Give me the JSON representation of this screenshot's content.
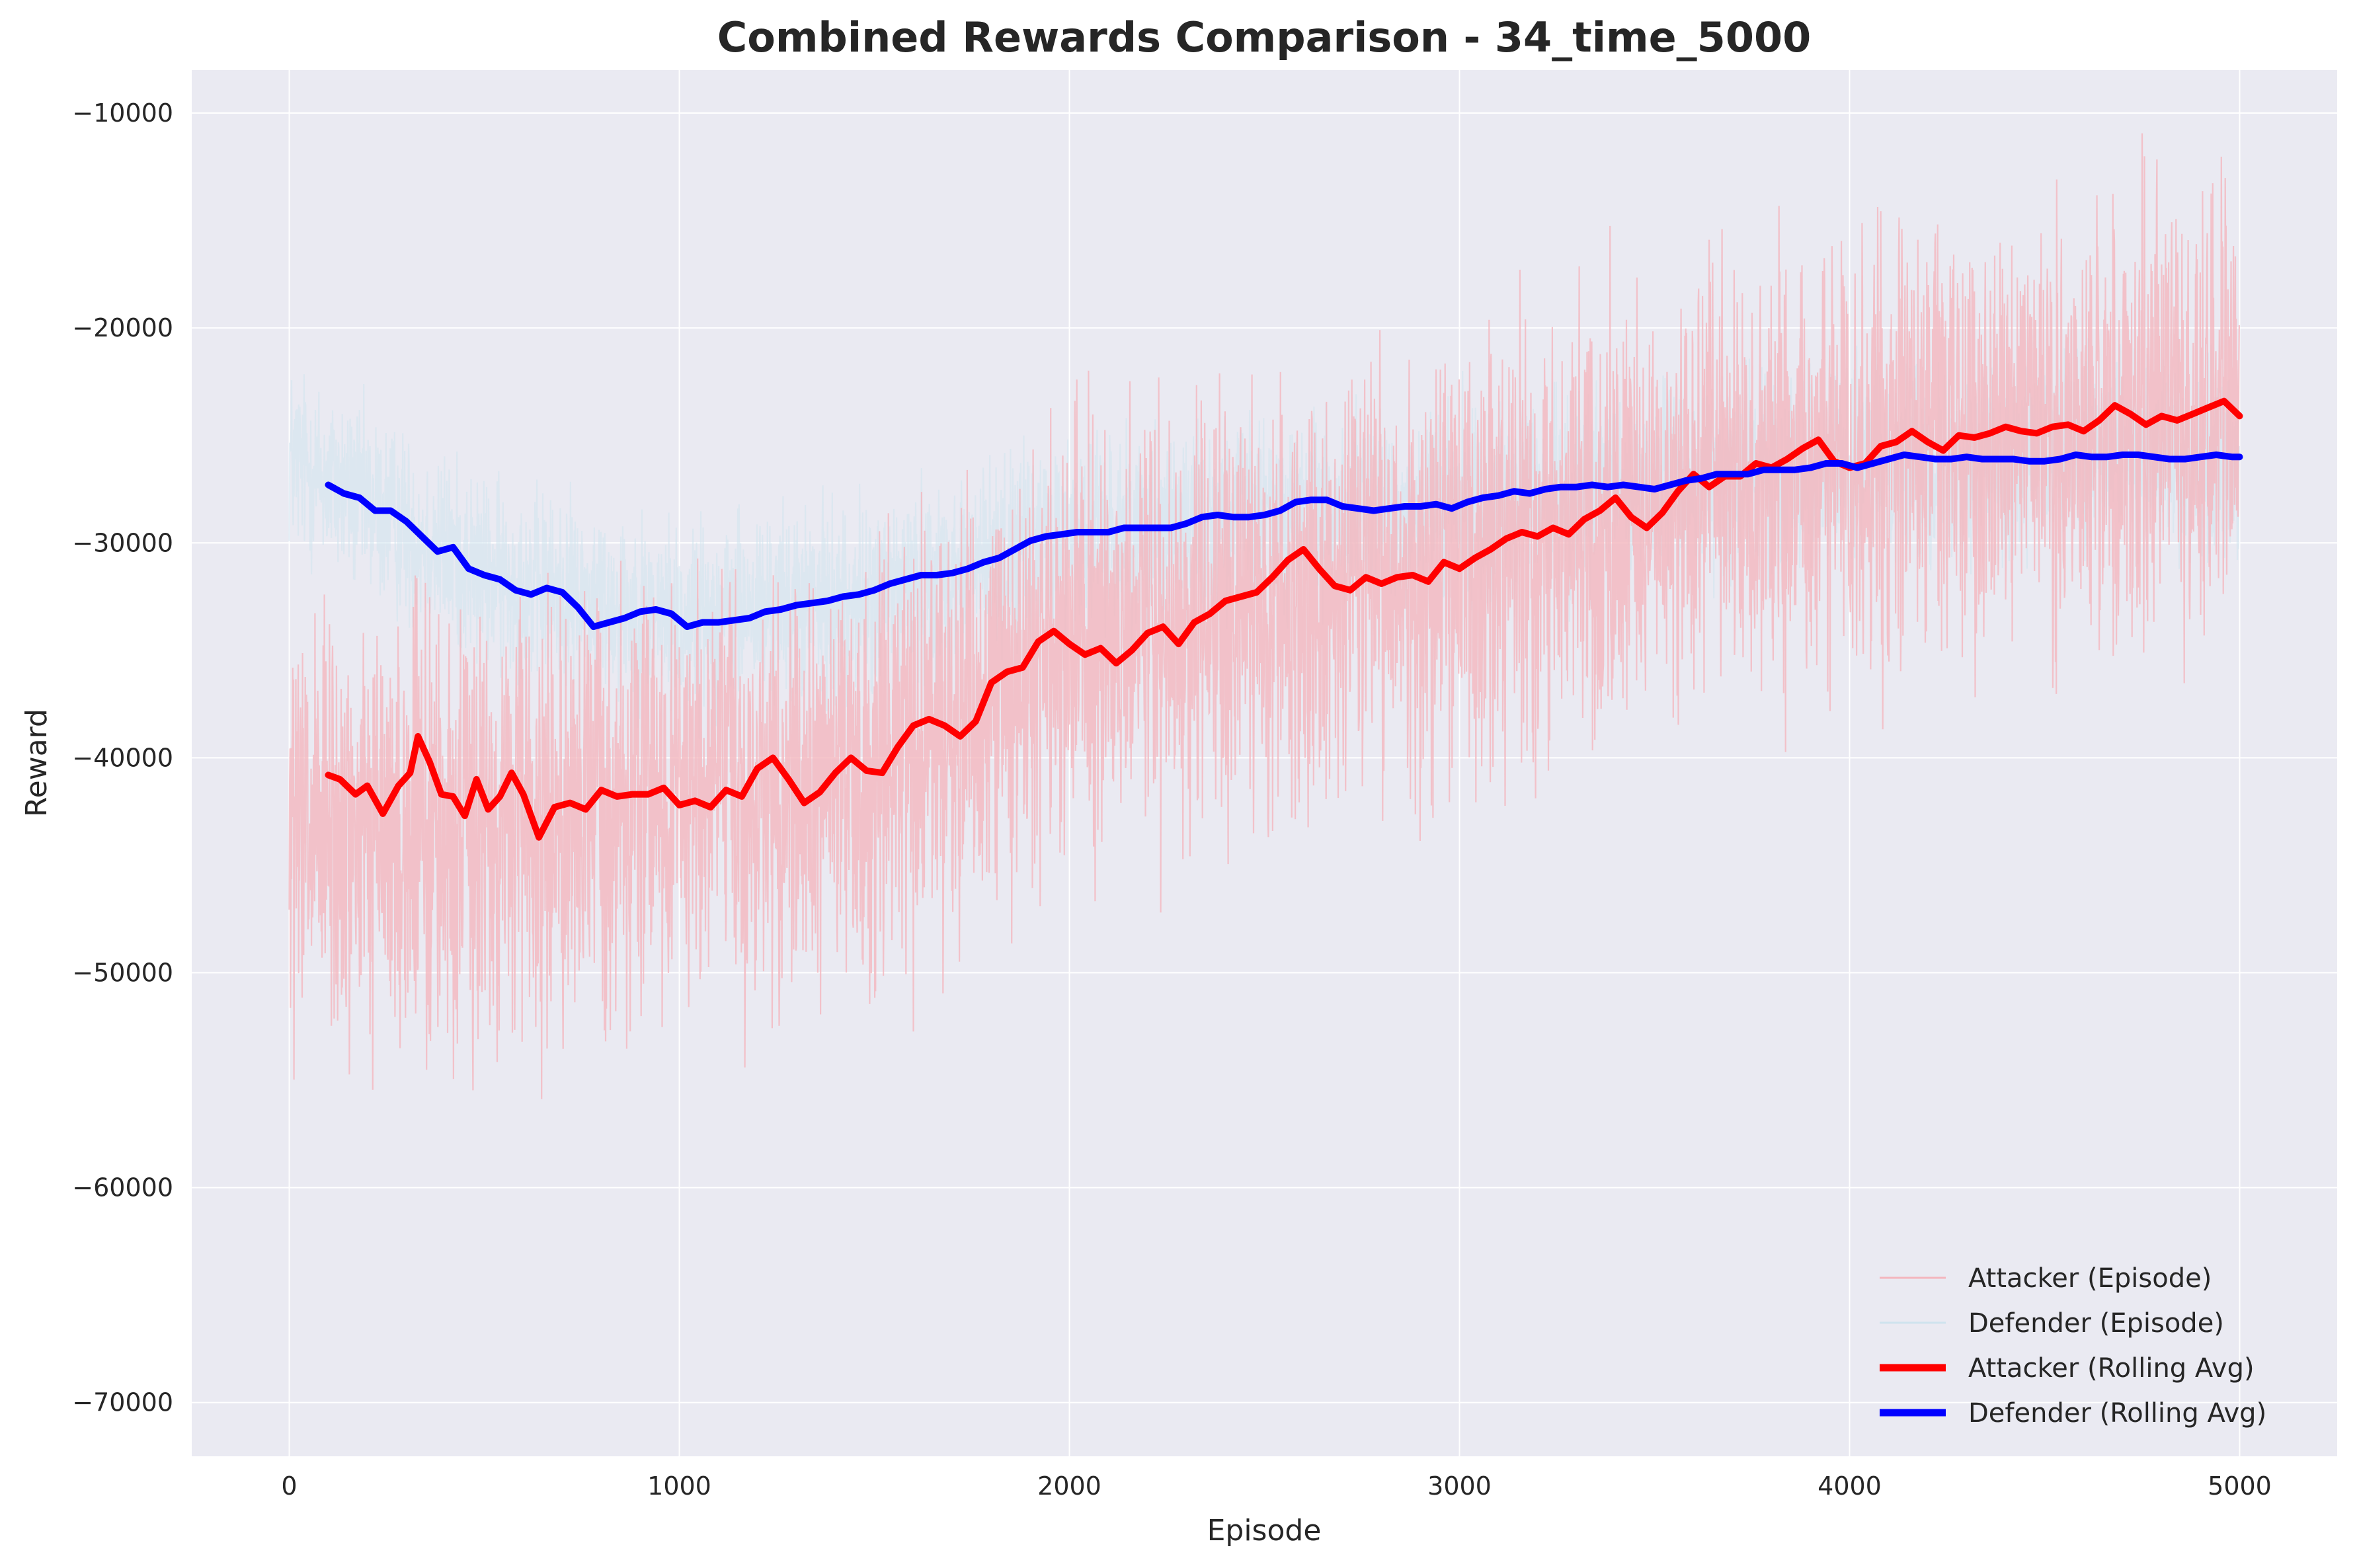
{
  "chart_data": {
    "type": "line",
    "title": "Combined Rewards Comparison - 34_time_5000",
    "xlabel": "Episode",
    "ylabel": "Reward",
    "xlim": [
      -250,
      5250
    ],
    "ylim": [
      -72500,
      -8000
    ],
    "x_ticks": [
      0,
      1000,
      2000,
      3000,
      4000,
      5000
    ],
    "x_tick_labels": [
      "0",
      "1000",
      "2000",
      "3000",
      "4000",
      "5000"
    ],
    "y_ticks": [
      -10000,
      -20000,
      -30000,
      -40000,
      -50000,
      -60000,
      -70000
    ],
    "y_tick_labels": [
      "−10000",
      "−20000",
      "−30000",
      "−40000",
      "−50000",
      "−60000",
      "−70000"
    ],
    "grid": true,
    "legend_position": "lower-right",
    "background_color": "#eaeaf2",
    "series": [
      {
        "name": "Attacker (Episode)",
        "color": "#f4b6be",
        "style": "thin-episode",
        "episodes": 5000,
        "trend_points": [
          [
            0,
            -44000
          ],
          [
            500,
            -43500
          ],
          [
            1000,
            -41500
          ],
          [
            1500,
            -41000
          ],
          [
            2000,
            -34500
          ],
          [
            2500,
            -33000
          ],
          [
            3000,
            -31000
          ],
          [
            3500,
            -28500
          ],
          [
            4000,
            -26000
          ],
          [
            4500,
            -24500
          ],
          [
            5000,
            -24000
          ]
        ],
        "spread": 9000
      },
      {
        "name": "Defender (Episode)",
        "color": "#cfe3ee",
        "style": "thin-episode",
        "episodes": 5000,
        "trend_points": [
          [
            0,
            -26000
          ],
          [
            500,
            -31500
          ],
          [
            1000,
            -33500
          ],
          [
            1500,
            -32500
          ],
          [
            2000,
            -29500
          ],
          [
            2500,
            -28800
          ],
          [
            3000,
            -28200
          ],
          [
            3500,
            -27300
          ],
          [
            4000,
            -26200
          ],
          [
            4500,
            -26000
          ],
          [
            5000,
            -26000
          ]
        ],
        "spread": 4000
      },
      {
        "name": "Attacker (Rolling Avg)",
        "color": "#ff0000",
        "style": "thick",
        "points": [
          [
            100,
            -40800
          ],
          [
            130,
            -41000
          ],
          [
            170,
            -41700
          ],
          [
            200,
            -41300
          ],
          [
            240,
            -42600
          ],
          [
            280,
            -41300
          ],
          [
            310,
            -40700
          ],
          [
            330,
            -39000
          ],
          [
            360,
            -40200
          ],
          [
            390,
            -41700
          ],
          [
            420,
            -41800
          ],
          [
            450,
            -42700
          ],
          [
            480,
            -41000
          ],
          [
            510,
            -42400
          ],
          [
            540,
            -41800
          ],
          [
            570,
            -40700
          ],
          [
            600,
            -41700
          ],
          [
            640,
            -43700
          ],
          [
            680,
            -42300
          ],
          [
            720,
            -42100
          ],
          [
            760,
            -42400
          ],
          [
            800,
            -41500
          ],
          [
            840,
            -41800
          ],
          [
            880,
            -41700
          ],
          [
            920,
            -41700
          ],
          [
            960,
            -41400
          ],
          [
            1000,
            -42200
          ],
          [
            1040,
            -42000
          ],
          [
            1080,
            -42300
          ],
          [
            1120,
            -41500
          ],
          [
            1160,
            -41800
          ],
          [
            1200,
            -40500
          ],
          [
            1240,
            -40000
          ],
          [
            1280,
            -41000
          ],
          [
            1320,
            -42100
          ],
          [
            1360,
            -41600
          ],
          [
            1400,
            -40700
          ],
          [
            1440,
            -40000
          ],
          [
            1480,
            -40600
          ],
          [
            1520,
            -40700
          ],
          [
            1560,
            -39500
          ],
          [
            1600,
            -38500
          ],
          [
            1640,
            -38200
          ],
          [
            1680,
            -38500
          ],
          [
            1720,
            -39000
          ],
          [
            1760,
            -38300
          ],
          [
            1800,
            -36500
          ],
          [
            1840,
            -36000
          ],
          [
            1880,
            -35800
          ],
          [
            1920,
            -34600
          ],
          [
            1960,
            -34100
          ],
          [
            2000,
            -34700
          ],
          [
            2040,
            -35200
          ],
          [
            2080,
            -34900
          ],
          [
            2120,
            -35600
          ],
          [
            2160,
            -35000
          ],
          [
            2200,
            -34200
          ],
          [
            2240,
            -33900
          ],
          [
            2280,
            -34700
          ],
          [
            2320,
            -33700
          ],
          [
            2360,
            -33300
          ],
          [
            2400,
            -32700
          ],
          [
            2440,
            -32500
          ],
          [
            2480,
            -32300
          ],
          [
            2520,
            -31600
          ],
          [
            2560,
            -30800
          ],
          [
            2600,
            -30300
          ],
          [
            2640,
            -31200
          ],
          [
            2680,
            -32000
          ],
          [
            2720,
            -32200
          ],
          [
            2760,
            -31600
          ],
          [
            2800,
            -31900
          ],
          [
            2840,
            -31600
          ],
          [
            2880,
            -31500
          ],
          [
            2920,
            -31800
          ],
          [
            2960,
            -30900
          ],
          [
            3000,
            -31200
          ],
          [
            3040,
            -30700
          ],
          [
            3080,
            -30300
          ],
          [
            3120,
            -29800
          ],
          [
            3160,
            -29500
          ],
          [
            3200,
            -29700
          ],
          [
            3240,
            -29300
          ],
          [
            3280,
            -29600
          ],
          [
            3320,
            -28900
          ],
          [
            3360,
            -28500
          ],
          [
            3400,
            -27900
          ],
          [
            3440,
            -28800
          ],
          [
            3480,
            -29300
          ],
          [
            3520,
            -28600
          ],
          [
            3560,
            -27600
          ],
          [
            3600,
            -26800
          ],
          [
            3640,
            -27400
          ],
          [
            3680,
            -26900
          ],
          [
            3720,
            -26900
          ],
          [
            3760,
            -26300
          ],
          [
            3800,
            -26500
          ],
          [
            3840,
            -26100
          ],
          [
            3880,
            -25600
          ],
          [
            3920,
            -25200
          ],
          [
            3960,
            -26200
          ],
          [
            4000,
            -26500
          ],
          [
            4040,
            -26300
          ],
          [
            4080,
            -25500
          ],
          [
            4120,
            -25300
          ],
          [
            4160,
            -24800
          ],
          [
            4200,
            -25300
          ],
          [
            4240,
            -25700
          ],
          [
            4280,
            -25000
          ],
          [
            4320,
            -25100
          ],
          [
            4360,
            -24900
          ],
          [
            4400,
            -24600
          ],
          [
            4440,
            -24800
          ],
          [
            4480,
            -24900
          ],
          [
            4520,
            -24600
          ],
          [
            4560,
            -24500
          ],
          [
            4600,
            -24800
          ],
          [
            4640,
            -24300
          ],
          [
            4680,
            -23600
          ],
          [
            4720,
            -24000
          ],
          [
            4760,
            -24500
          ],
          [
            4800,
            -24100
          ],
          [
            4840,
            -24300
          ],
          [
            4880,
            -24000
          ],
          [
            4920,
            -23700
          ],
          [
            4960,
            -23400
          ],
          [
            5000,
            -24100
          ]
        ]
      },
      {
        "name": "Defender (Rolling Avg)",
        "color": "#0000ff",
        "style": "thick",
        "points": [
          [
            100,
            -27300
          ],
          [
            140,
            -27700
          ],
          [
            180,
            -27900
          ],
          [
            220,
            -28500
          ],
          [
            260,
            -28500
          ],
          [
            300,
            -29000
          ],
          [
            340,
            -29700
          ],
          [
            380,
            -30400
          ],
          [
            420,
            -30200
          ],
          [
            460,
            -31200
          ],
          [
            500,
            -31500
          ],
          [
            540,
            -31700
          ],
          [
            580,
            -32200
          ],
          [
            620,
            -32400
          ],
          [
            660,
            -32100
          ],
          [
            700,
            -32300
          ],
          [
            740,
            -33000
          ],
          [
            780,
            -33900
          ],
          [
            820,
            -33700
          ],
          [
            860,
            -33500
          ],
          [
            900,
            -33200
          ],
          [
            940,
            -33100
          ],
          [
            980,
            -33300
          ],
          [
            1020,
            -33900
          ],
          [
            1060,
            -33700
          ],
          [
            1100,
            -33700
          ],
          [
            1140,
            -33600
          ],
          [
            1180,
            -33500
          ],
          [
            1220,
            -33200
          ],
          [
            1260,
            -33100
          ],
          [
            1300,
            -32900
          ],
          [
            1340,
            -32800
          ],
          [
            1380,
            -32700
          ],
          [
            1420,
            -32500
          ],
          [
            1460,
            -32400
          ],
          [
            1500,
            -32200
          ],
          [
            1540,
            -31900
          ],
          [
            1580,
            -31700
          ],
          [
            1620,
            -31500
          ],
          [
            1660,
            -31500
          ],
          [
            1700,
            -31400
          ],
          [
            1740,
            -31200
          ],
          [
            1780,
            -30900
          ],
          [
            1820,
            -30700
          ],
          [
            1860,
            -30300
          ],
          [
            1900,
            -29900
          ],
          [
            1940,
            -29700
          ],
          [
            1980,
            -29600
          ],
          [
            2020,
            -29500
          ],
          [
            2060,
            -29500
          ],
          [
            2100,
            -29500
          ],
          [
            2140,
            -29300
          ],
          [
            2180,
            -29300
          ],
          [
            2220,
            -29300
          ],
          [
            2260,
            -29300
          ],
          [
            2300,
            -29100
          ],
          [
            2340,
            -28800
          ],
          [
            2380,
            -28700
          ],
          [
            2420,
            -28800
          ],
          [
            2460,
            -28800
          ],
          [
            2500,
            -28700
          ],
          [
            2540,
            -28500
          ],
          [
            2580,
            -28100
          ],
          [
            2620,
            -28000
          ],
          [
            2660,
            -28000
          ],
          [
            2700,
            -28300
          ],
          [
            2740,
            -28400
          ],
          [
            2780,
            -28500
          ],
          [
            2820,
            -28400
          ],
          [
            2860,
            -28300
          ],
          [
            2900,
            -28300
          ],
          [
            2940,
            -28200
          ],
          [
            2980,
            -28400
          ],
          [
            3020,
            -28100
          ],
          [
            3060,
            -27900
          ],
          [
            3100,
            -27800
          ],
          [
            3140,
            -27600
          ],
          [
            3180,
            -27700
          ],
          [
            3220,
            -27500
          ],
          [
            3260,
            -27400
          ],
          [
            3300,
            -27400
          ],
          [
            3340,
            -27300
          ],
          [
            3380,
            -27400
          ],
          [
            3420,
            -27300
          ],
          [
            3460,
            -27400
          ],
          [
            3500,
            -27500
          ],
          [
            3540,
            -27300
          ],
          [
            3580,
            -27100
          ],
          [
            3620,
            -27000
          ],
          [
            3660,
            -26800
          ],
          [
            3700,
            -26800
          ],
          [
            3740,
            -26800
          ],
          [
            3780,
            -26600
          ],
          [
            3820,
            -26600
          ],
          [
            3860,
            -26600
          ],
          [
            3900,
            -26500
          ],
          [
            3940,
            -26300
          ],
          [
            3980,
            -26300
          ],
          [
            4020,
            -26500
          ],
          [
            4060,
            -26300
          ],
          [
            4100,
            -26100
          ],
          [
            4140,
            -25900
          ],
          [
            4180,
            -26000
          ],
          [
            4220,
            -26100
          ],
          [
            4260,
            -26100
          ],
          [
            4300,
            -26000
          ],
          [
            4340,
            -26100
          ],
          [
            4380,
            -26100
          ],
          [
            4420,
            -26100
          ],
          [
            4460,
            -26200
          ],
          [
            4500,
            -26200
          ],
          [
            4540,
            -26100
          ],
          [
            4580,
            -25900
          ],
          [
            4620,
            -26000
          ],
          [
            4660,
            -26000
          ],
          [
            4700,
            -25900
          ],
          [
            4740,
            -25900
          ],
          [
            4780,
            -26000
          ],
          [
            4820,
            -26100
          ],
          [
            4860,
            -26100
          ],
          [
            4900,
            -26000
          ],
          [
            4940,
            -25900
          ],
          [
            4980,
            -26000
          ],
          [
            5000,
            -26000
          ]
        ]
      }
    ]
  }
}
